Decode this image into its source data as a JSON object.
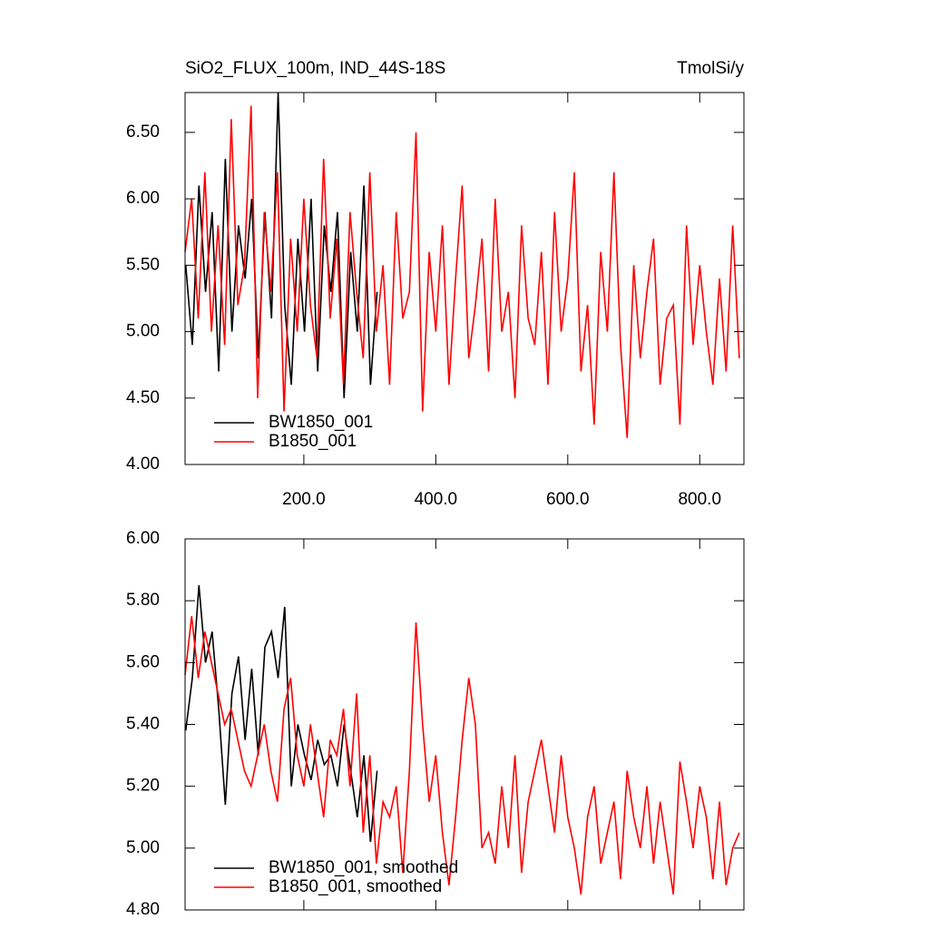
{
  "chart_data": [
    {
      "type": "line",
      "title": "SiO2_FLUX_100m, IND_44S-18S",
      "subtitle": "TmolSi/y",
      "xlim": [
        20,
        867
      ],
      "ylim": [
        4.0,
        6.8
      ],
      "xticks": [
        {
          "value": 200,
          "label": "200.0"
        },
        {
          "value": 400,
          "label": "400.0"
        },
        {
          "value": 600,
          "label": "600.0"
        },
        {
          "value": 800,
          "label": "800.0"
        }
      ],
      "yticks": [
        {
          "value": 4.0,
          "label": "4.00"
        },
        {
          "value": 4.5,
          "label": "4.50"
        },
        {
          "value": 5.0,
          "label": "5.00"
        },
        {
          "value": 5.5,
          "label": "5.50"
        },
        {
          "value": 6.0,
          "label": "6.00"
        },
        {
          "value": 6.5,
          "label": "6.50"
        }
      ],
      "legend": "lower left",
      "series": [
        {
          "name": "BW1850_001",
          "color": "#000000",
          "x": [
            21,
            31,
            41,
            51,
            61,
            71,
            81,
            91,
            101,
            111,
            121,
            131,
            141,
            151,
            161,
            171,
            181,
            191,
            201,
            211,
            221,
            231,
            241,
            251,
            261,
            271,
            281,
            291,
            301,
            311
          ],
          "values": [
            5.5,
            4.9,
            6.1,
            5.3,
            5.9,
            4.7,
            6.3,
            5.0,
            5.8,
            5.4,
            6.0,
            4.8,
            5.9,
            5.1,
            6.8,
            5.2,
            4.6,
            5.7,
            5.0,
            6.0,
            4.7,
            5.8,
            5.3,
            5.9,
            4.5,
            5.6,
            5.0,
            6.1,
            4.6,
            5.3
          ]
        },
        {
          "name": "B1850_001",
          "color": "#ff0000",
          "x": [
            20,
            30,
            40,
            50,
            60,
            70,
            80,
            90,
            100,
            110,
            120,
            130,
            140,
            150,
            160,
            170,
            180,
            190,
            200,
            210,
            220,
            230,
            240,
            250,
            260,
            270,
            280,
            290,
            300,
            310,
            320,
            330,
            340,
            350,
            360,
            370,
            380,
            390,
            400,
            410,
            420,
            430,
            440,
            450,
            460,
            470,
            480,
            490,
            500,
            510,
            520,
            530,
            540,
            550,
            560,
            570,
            580,
            590,
            600,
            610,
            620,
            630,
            640,
            650,
            660,
            670,
            680,
            690,
            700,
            710,
            720,
            730,
            740,
            750,
            760,
            770,
            780,
            790,
            800,
            810,
            820,
            830,
            840,
            850,
            860
          ],
          "values": [
            5.6,
            6.0,
            5.1,
            6.2,
            5.0,
            5.8,
            4.9,
            6.6,
            5.2,
            5.5,
            6.7,
            4.5,
            5.9,
            5.3,
            6.2,
            4.4,
            5.7,
            5.0,
            6.0,
            5.2,
            4.8,
            6.3,
            5.1,
            5.7,
            4.6,
            5.9,
            5.3,
            4.8,
            6.2,
            5.0,
            5.5,
            4.6,
            5.9,
            5.1,
            5.3,
            6.5,
            4.4,
            5.6,
            5.0,
            5.8,
            4.6,
            5.4,
            6.1,
            4.8,
            5.2,
            5.7,
            4.7,
            6.0,
            5.0,
            5.3,
            4.5,
            5.8,
            5.1,
            4.9,
            5.6,
            4.6,
            5.9,
            5.0,
            5.4,
            6.2,
            4.7,
            5.2,
            4.3,
            5.6,
            5.0,
            6.2,
            4.9,
            4.2,
            5.5,
            4.8,
            5.3,
            5.7,
            4.6,
            5.1,
            5.2,
            4.3,
            5.8,
            4.9,
            5.5,
            5.0,
            4.6,
            5.4,
            4.7,
            5.8,
            4.8
          ]
        }
      ]
    },
    {
      "type": "line",
      "xlim": [
        20,
        867
      ],
      "ylim": [
        4.8,
        6.0
      ],
      "xticks": [
        200,
        400,
        600,
        800
      ],
      "yticks": [
        {
          "value": 4.8,
          "label": "4.80"
        },
        {
          "value": 5.0,
          "label": "5.00"
        },
        {
          "value": 5.2,
          "label": "5.20"
        },
        {
          "value": 5.4,
          "label": "5.40"
        },
        {
          "value": 5.6,
          "label": "5.60"
        },
        {
          "value": 5.8,
          "label": "5.80"
        },
        {
          "value": 6.0,
          "label": "6.00"
        }
      ],
      "legend": "lower left",
      "series": [
        {
          "name": "BW1850_001, smoothed",
          "color": "#000000",
          "x": [
            21,
            31,
            41,
            51,
            61,
            71,
            81,
            91,
            101,
            111,
            121,
            131,
            141,
            151,
            161,
            171,
            181,
            191,
            201,
            211,
            221,
            231,
            241,
            251,
            261,
            271,
            281,
            291,
            301,
            311
          ],
          "values": [
            5.38,
            5.55,
            5.85,
            5.6,
            5.7,
            5.45,
            5.14,
            5.5,
            5.62,
            5.35,
            5.58,
            5.3,
            5.65,
            5.7,
            5.55,
            5.78,
            5.2,
            5.4,
            5.3,
            5.22,
            5.35,
            5.27,
            5.3,
            5.2,
            5.4,
            5.25,
            5.1,
            5.3,
            5.02,
            5.25
          ]
        },
        {
          "name": "B1850_001, smoothed",
          "color": "#ff0000",
          "x": [
            20,
            30,
            40,
            50,
            60,
            70,
            80,
            90,
            100,
            110,
            120,
            130,
            140,
            150,
            160,
            170,
            180,
            190,
            200,
            210,
            220,
            230,
            240,
            250,
            260,
            270,
            280,
            290,
            300,
            310,
            320,
            330,
            340,
            350,
            360,
            370,
            380,
            390,
            400,
            410,
            420,
            430,
            440,
            450,
            460,
            470,
            480,
            490,
            500,
            510,
            520,
            530,
            540,
            550,
            560,
            570,
            580,
            590,
            600,
            610,
            620,
            630,
            640,
            650,
            660,
            670,
            680,
            690,
            700,
            710,
            720,
            730,
            740,
            750,
            760,
            770,
            780,
            790,
            800,
            810,
            820,
            830,
            840,
            850,
            860
          ],
          "values": [
            5.56,
            5.75,
            5.55,
            5.7,
            5.6,
            5.5,
            5.4,
            5.45,
            5.35,
            5.25,
            5.2,
            5.3,
            5.4,
            5.25,
            5.15,
            5.45,
            5.55,
            5.3,
            5.2,
            5.4,
            5.25,
            5.1,
            5.35,
            5.3,
            5.45,
            5.2,
            5.5,
            5.05,
            5.3,
            4.95,
            5.15,
            5.1,
            5.2,
            4.92,
            5.25,
            5.73,
            5.4,
            5.15,
            5.3,
            5.05,
            4.88,
            5.1,
            5.35,
            5.55,
            5.4,
            5.0,
            5.05,
            4.95,
            5.2,
            5.0,
            5.3,
            4.92,
            5.15,
            5.25,
            5.35,
            5.2,
            5.05,
            5.3,
            5.1,
            5.0,
            4.85,
            5.1,
            5.2,
            4.95,
            5.05,
            5.15,
            4.9,
            5.25,
            5.1,
            5.0,
            5.2,
            4.95,
            5.15,
            5.0,
            4.85,
            5.28,
            5.15,
            5.0,
            5.2,
            5.1,
            4.9,
            5.15,
            4.88,
            5.0,
            5.05
          ]
        }
      ]
    }
  ]
}
